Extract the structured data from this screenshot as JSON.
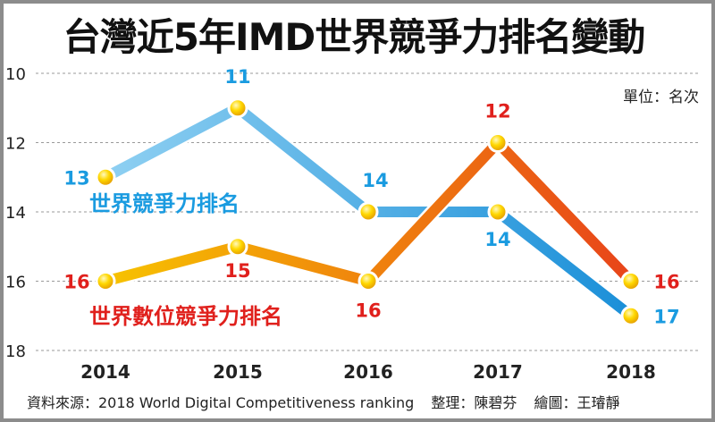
{
  "chart_data": {
    "type": "line",
    "title": "台灣近5年IMD世界競爭力排名變動",
    "unit_label": "單位：名次",
    "categories": [
      "2014",
      "2015",
      "2016",
      "2017",
      "2018"
    ],
    "y_ticks": [
      "10",
      "12",
      "14",
      "16",
      "18"
    ],
    "ylim": [
      10,
      18
    ],
    "y_inverted": true,
    "grid": "horizontal-dashed",
    "series": [
      {
        "name": "世界競爭力排名",
        "values": [
          13,
          11,
          14,
          14,
          17
        ],
        "color": "#1a9be0",
        "line_colors": [
          "#8fd0f2",
          "#1a8fd8"
        ]
      },
      {
        "name": "世界數位競爭力排名",
        "values": [
          16,
          15,
          16,
          12,
          16
        ],
        "color": "#e0201c",
        "line_colors": [
          "#f7c300",
          "#e8441a"
        ]
      }
    ]
  },
  "footer": {
    "source": "資料來源：2018 World Digital Competitiveness ranking",
    "editor": "整理：陳碧芬",
    "illustrator": "繪圖：王璿靜"
  }
}
